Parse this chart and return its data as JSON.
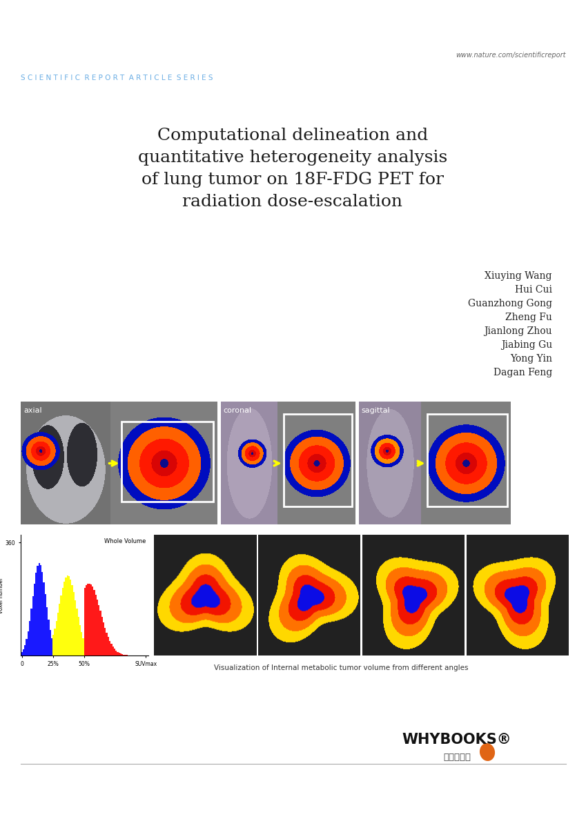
{
  "title_lines": [
    "Computational delineation and",
    "quantitative heterogeneity analysis",
    "of lung tumor on 18F-FDG PET for",
    "radiation dose-escalation"
  ],
  "authors": [
    "Xiuying Wang",
    "Hui Cui",
    "Guanzhong Gong",
    "Zheng Fu",
    "Jianlong Zhou",
    "Jiabing Gu",
    "Yong Yin",
    "Dagan Feng"
  ],
  "header_url": "www.nature.com/scientificreport",
  "header_series": "S C I E N T I F I C  R E P O R T  A R T I C L E  S E R I E S",
  "bg_color": "#ffffff",
  "title_color": "#1a1a1a",
  "header_url_color": "#666666",
  "header_series_color": "#6aade4",
  "author_color": "#222222",
  "caption_text": "Visualization of Internal metabolic tumor volume from different angles",
  "whybooks_text": "WHYBOOKS®",
  "whybooks_korean": "주와이북스",
  "hist_title": "Whole Volume",
  "hist_ylabel": "voxel number",
  "hist_ytick": "360",
  "hist_xtick_labels": [
    "0",
    "25%",
    "50%",
    "SUVmax"
  ]
}
